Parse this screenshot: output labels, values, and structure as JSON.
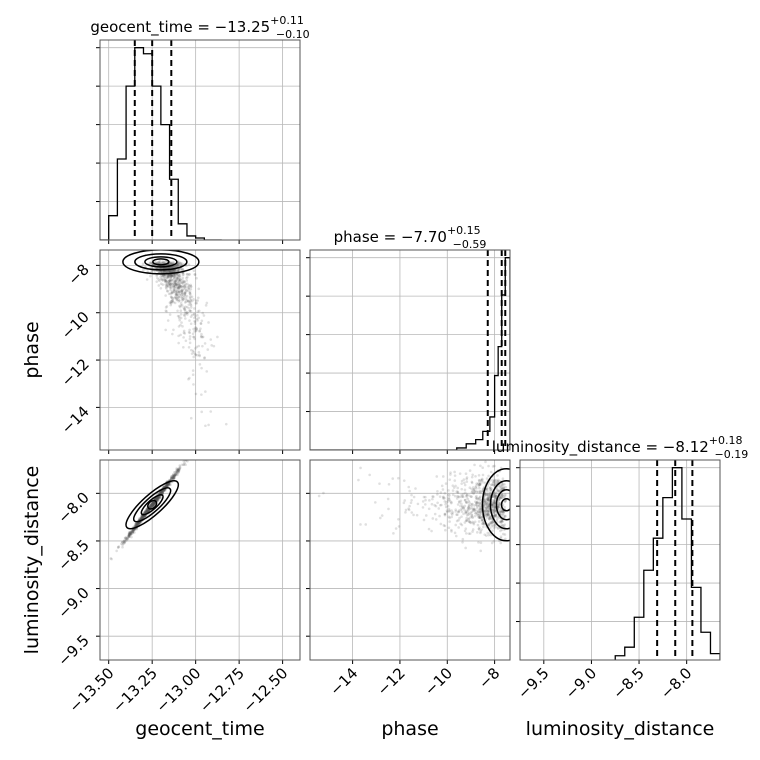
{
  "chart_data": {
    "type": "corner",
    "parameters": [
      "geocent_time",
      "phase",
      "luminosity_distance"
    ],
    "titles": {
      "geocent_time": {
        "prefix": "geocent_time = ",
        "median": "−13.25",
        "plus": "+0.11",
        "minus": "−0.10"
      },
      "phase": {
        "prefix": "phase = ",
        "median": "−7.70",
        "plus": "+0.15",
        "minus": "−0.59"
      },
      "luminosity_distance": {
        "prefix": "luminosity_distance = ",
        "median": "−8.12",
        "plus": "+0.18",
        "minus": "−0.19"
      }
    },
    "ranges": {
      "geocent_time": [
        -13.55,
        -12.4
      ],
      "phase": [
        -15.8,
        -7.35
      ],
      "luminosity_distance": [
        -9.75,
        -7.65
      ]
    },
    "ticks": {
      "geocent_time": [
        {
          "value": -13.5,
          "label": "−13.50"
        },
        {
          "value": -13.25,
          "label": "−13.25"
        },
        {
          "value": -13.0,
          "label": "−13.00"
        },
        {
          "value": -12.75,
          "label": "−12.75"
        },
        {
          "value": -12.5,
          "label": "−12.50"
        }
      ],
      "phase": [
        {
          "value": -14,
          "label": "−14"
        },
        {
          "value": -12,
          "label": "−12"
        },
        {
          "value": -10,
          "label": "−10"
        },
        {
          "value": -8,
          "label": "−8"
        }
      ],
      "luminosity_distance": [
        {
          "value": -9.5,
          "label": "−9.5"
        },
        {
          "value": -9.0,
          "label": "−9.0"
        },
        {
          "value": -8.5,
          "label": "−8.5"
        },
        {
          "value": -8.0,
          "label": "−8.0"
        }
      ]
    },
    "histograms": {
      "geocent_time": {
        "bin_edges": [
          -13.55,
          -13.5,
          -13.45,
          -13.4,
          -13.35,
          -13.3,
          -13.25,
          -13.2,
          -13.15,
          -13.1,
          -13.05,
          -13.0,
          -12.95,
          -12.9,
          -12.85
        ],
        "counts": [
          0,
          0.12,
          0.4,
          0.76,
          0.95,
          0.92,
          0.76,
          0.57,
          0.3,
          0.08,
          0.02,
          0.01,
          0,
          0
        ]
      },
      "phase": {
        "bin_edges": [
          -15.8,
          -9.6,
          -9.2,
          -8.8,
          -8.5,
          -8.2,
          -8.0,
          -7.85,
          -7.7,
          -7.55,
          -7.35
        ],
        "counts": [
          0,
          0.01,
          0.03,
          0.05,
          0.09,
          0.16,
          0.36,
          0.5,
          0.75,
          0.93
        ]
      },
      "luminosity_distance": {
        "bin_edges": [
          -8.75,
          -8.65,
          -8.55,
          -8.45,
          -8.35,
          -8.25,
          -8.15,
          -8.05,
          -7.95,
          -7.85,
          -7.75,
          -7.65
        ],
        "counts": [
          0.02,
          0.06,
          0.2,
          0.42,
          0.57,
          0.76,
          0.9,
          0.66,
          0.34,
          0.13,
          0.03
        ]
      }
    },
    "quantiles": {
      "geocent_time": [
        -13.35,
        -13.25,
        -13.14
      ],
      "phase": [
        -8.29,
        -7.7,
        -7.55
      ],
      "luminosity_distance": [
        -8.31,
        -8.12,
        -7.94
      ]
    },
    "scatter": {
      "geocent_time__phase": {
        "center": [
          -13.2,
          -7.85
        ]
      },
      "geocent_time__luminosity_distance": {
        "center": [
          -13.25,
          -8.12
        ]
      },
      "phase__luminosity_distance": {
        "center": [
          -7.5,
          -8.12
        ]
      }
    },
    "grid": true
  }
}
